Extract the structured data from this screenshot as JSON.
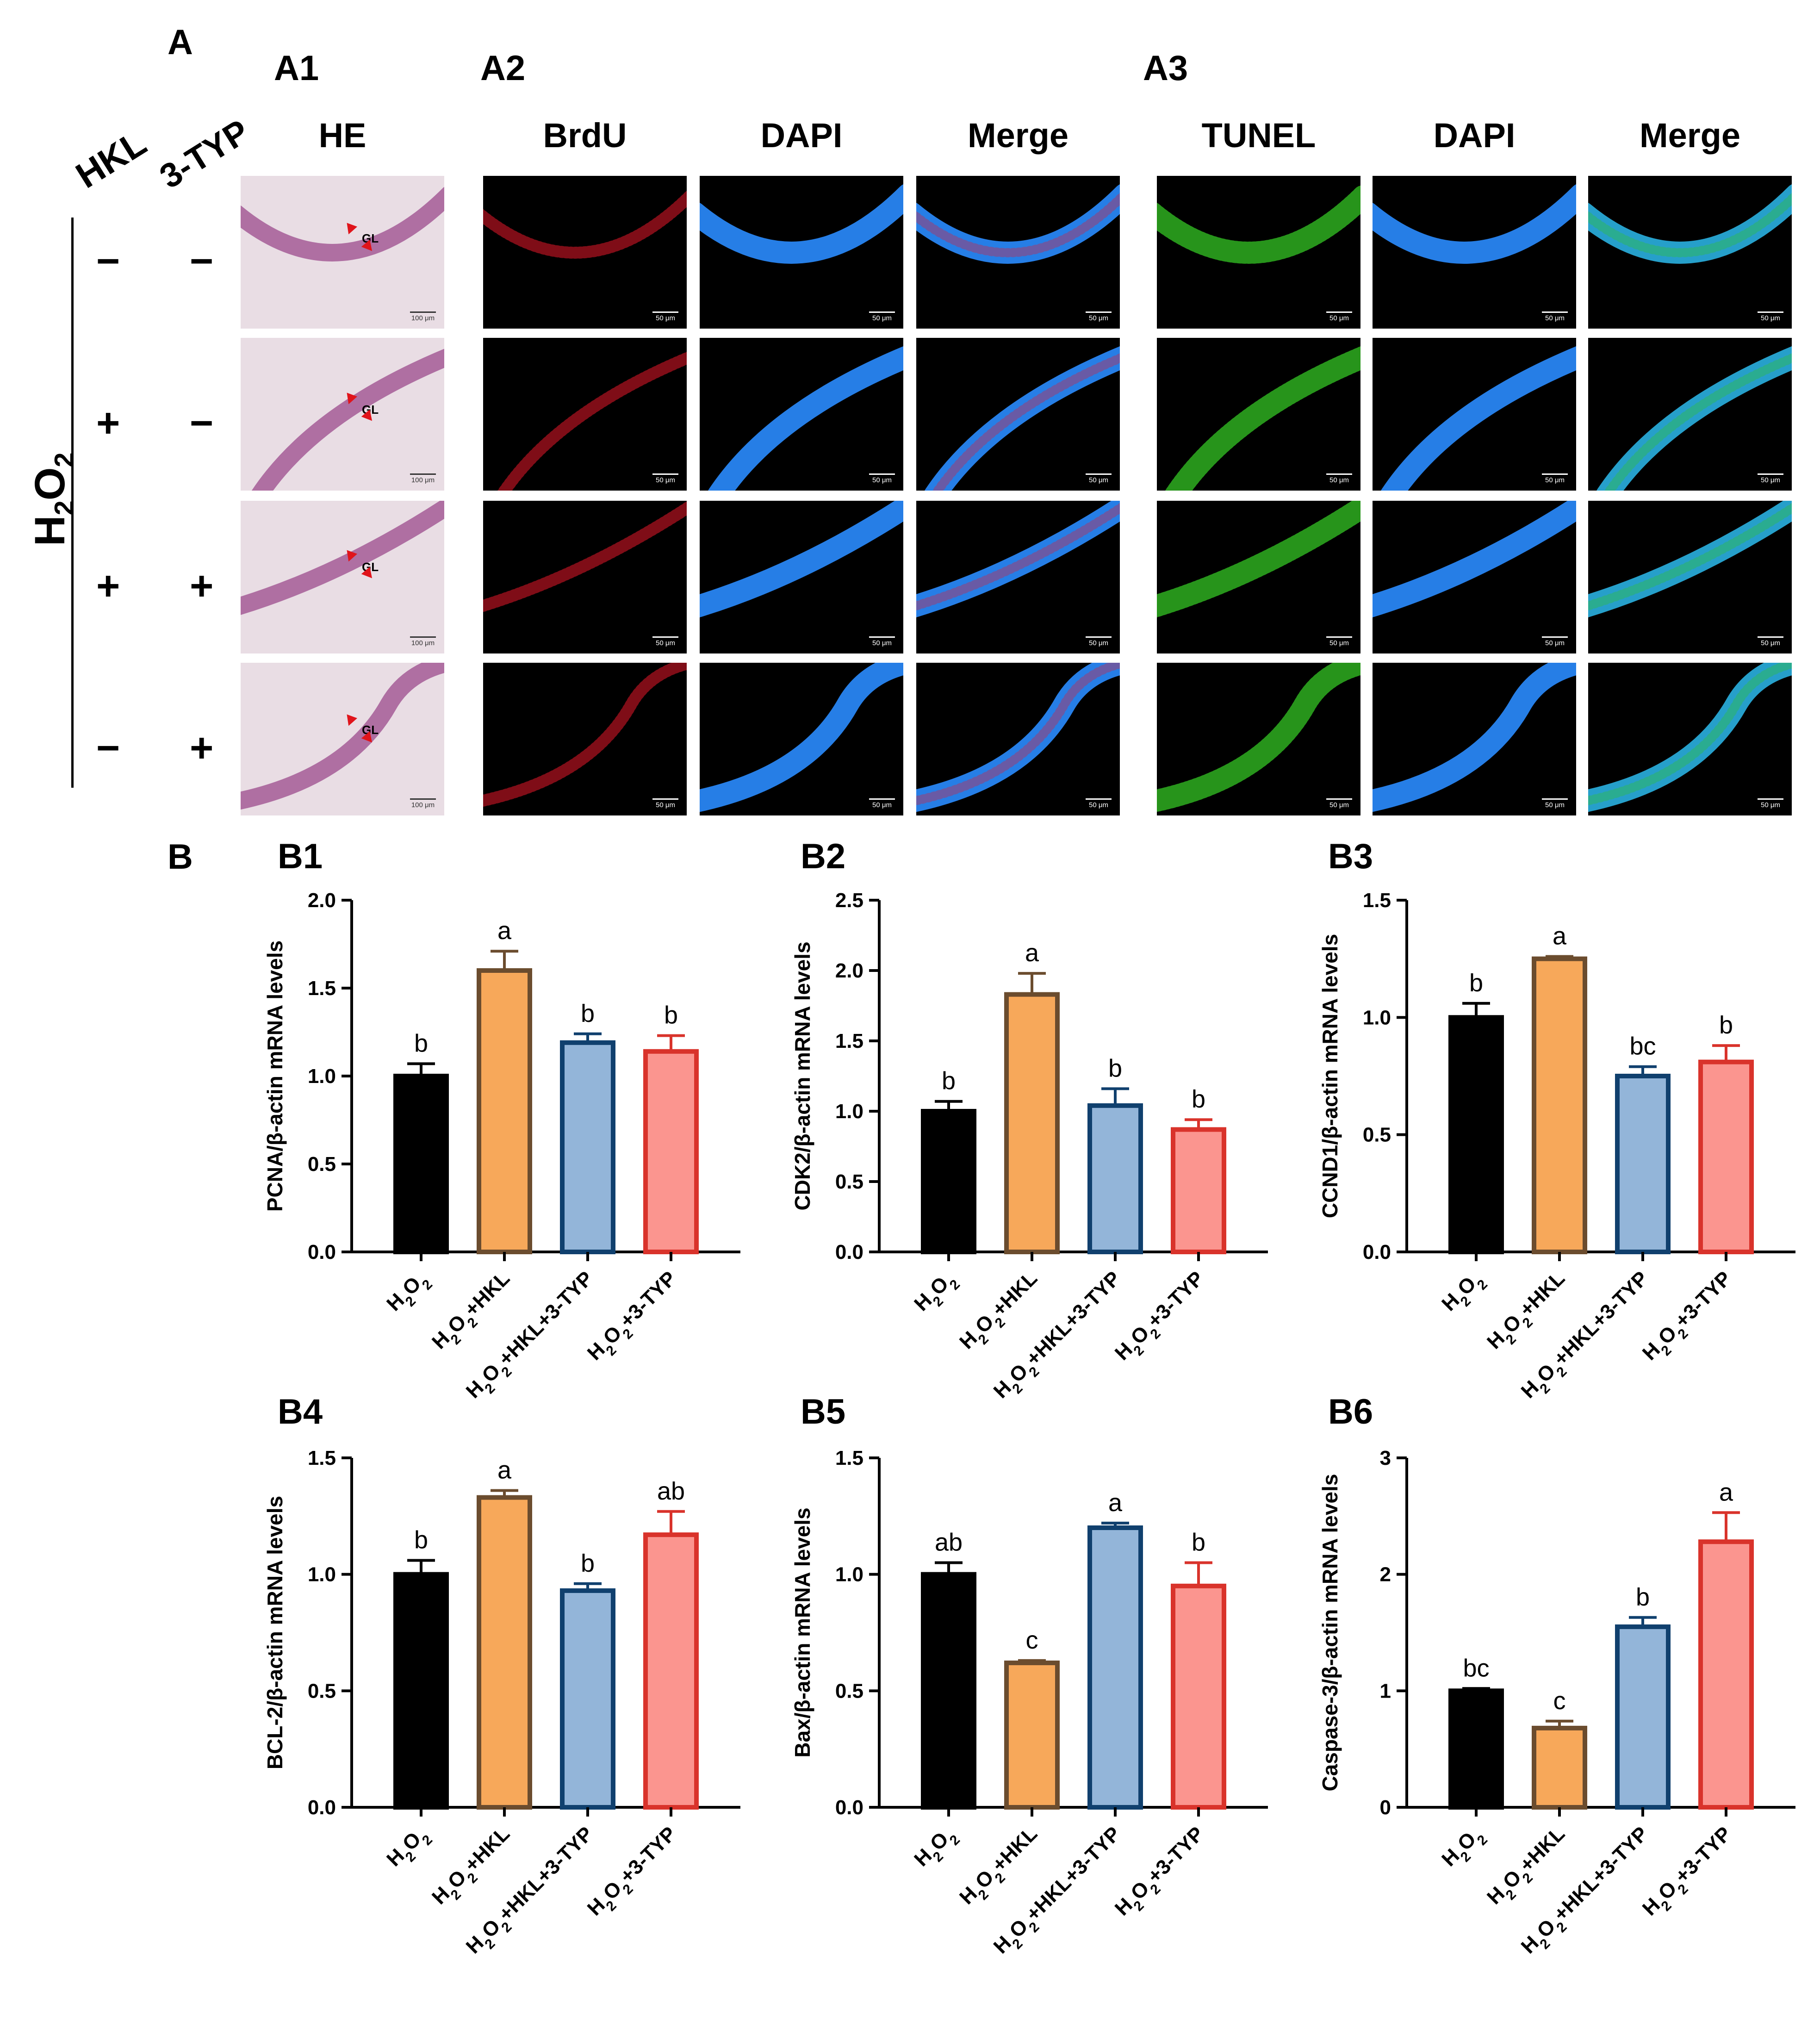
{
  "figure": {
    "panelA": {
      "letter": "A",
      "subpanels": [
        "A1",
        "A2",
        "A3"
      ],
      "row_factors": [
        "HKL",
        "3-TYP"
      ],
      "treatment": {
        "base": "H",
        "sub2": "2",
        "mid": "O",
        "sub2b": "2"
      },
      "columns": [
        "HE",
        "BrdU",
        "DAPI",
        "Merge",
        "TUNEL",
        "DAPI",
        "Merge"
      ],
      "rows": [
        {
          "hkl": "−",
          "typ": "−"
        },
        {
          "hkl": "+",
          "typ": "−"
        },
        {
          "hkl": "+",
          "typ": "+"
        },
        {
          "hkl": "−",
          "typ": "+"
        }
      ],
      "he_label": "GL",
      "he_scale": "100 μm",
      "fluor_scale": "50 μm",
      "stain_colors": {
        "BrdU": "#e8182a",
        "DAPI": "#2a8cff",
        "TUNEL": "#34c524",
        "MergeA3": "#2ab0e0"
      }
    },
    "panelB": {
      "letter": "B"
    }
  },
  "chart_data": [
    {
      "id": "B1",
      "type": "bar",
      "categories": [
        "H2O2",
        "H2O2+HKL",
        "H2O2+HKL+3-TYP",
        "H2O2+3-TYP"
      ],
      "values": [
        1.0,
        1.6,
        1.19,
        1.14
      ],
      "errors": [
        0.07,
        0.11,
        0.05,
        0.09
      ],
      "letters": [
        "b",
        "a",
        "b",
        "b"
      ],
      "ylabel": "PCNA/β-actin mRNA levels",
      "ylim": [
        0,
        2.0
      ],
      "yticks": [
        0.0,
        0.5,
        1.0,
        1.5,
        2.0
      ],
      "tick_decimals": 1
    },
    {
      "id": "B2",
      "type": "bar",
      "categories": [
        "H2O2",
        "H2O2+HKL",
        "H2O2+HKL+3-TYP",
        "H2O2+3-TYP"
      ],
      "values": [
        1.0,
        1.83,
        1.04,
        0.87
      ],
      "errors": [
        0.07,
        0.15,
        0.12,
        0.07
      ],
      "letters": [
        "b",
        "a",
        "b",
        "b"
      ],
      "ylabel": "CDK2/β-actin mRNA levels",
      "ylim": [
        0,
        2.5
      ],
      "yticks": [
        0.0,
        0.5,
        1.0,
        1.5,
        2.0,
        2.5
      ],
      "tick_decimals": 1
    },
    {
      "id": "B3",
      "type": "bar",
      "categories": [
        "H2O2",
        "H2O2+HKL",
        "H2O2+HKL+3-TYP",
        "H2O2+3-TYP"
      ],
      "values": [
        1.0,
        1.25,
        0.75,
        0.81
      ],
      "errors": [
        0.06,
        0.01,
        0.04,
        0.07
      ],
      "letters": [
        "b",
        "a",
        "bc",
        "b"
      ],
      "ylabel": "CCND1/β-actin mRNA levels",
      "ylim": [
        0,
        1.5
      ],
      "yticks": [
        0.0,
        0.5,
        1.0,
        1.5
      ],
      "tick_decimals": 1
    },
    {
      "id": "B4",
      "type": "bar",
      "categories": [
        "H2O2",
        "H2O2+HKL",
        "H2O2+HKL+3-TYP",
        "H2O2+3-TYP"
      ],
      "values": [
        1.0,
        1.33,
        0.93,
        1.17
      ],
      "errors": [
        0.06,
        0.03,
        0.03,
        0.1
      ],
      "letters": [
        "b",
        "a",
        "b",
        "ab"
      ],
      "ylabel": "BCL-2/β-actin mRNA levels",
      "ylim": [
        0,
        1.5
      ],
      "yticks": [
        0.0,
        0.5,
        1.0,
        1.5
      ],
      "tick_decimals": 1
    },
    {
      "id": "B5",
      "type": "bar",
      "categories": [
        "H2O2",
        "H2O2+HKL",
        "H2O2+HKL+3-TYP",
        "H2O2+3-TYP"
      ],
      "values": [
        1.0,
        0.62,
        1.2,
        0.95
      ],
      "errors": [
        0.05,
        0.01,
        0.02,
        0.1
      ],
      "letters": [
        "ab",
        "c",
        "a",
        "b"
      ],
      "ylabel": "Bax/β-actin mRNA levels",
      "ylim": [
        0,
        1.5
      ],
      "yticks": [
        0.0,
        0.5,
        1.0,
        1.5
      ],
      "tick_decimals": 1
    },
    {
      "id": "B6",
      "type": "bar",
      "categories": [
        "H2O2",
        "H2O2+HKL",
        "H2O2+HKL+3-TYP",
        "H2O2+3-TYP"
      ],
      "values": [
        1.0,
        0.68,
        1.55,
        2.28
      ],
      "errors": [
        0.02,
        0.06,
        0.08,
        0.25
      ],
      "letters": [
        "bc",
        "c",
        "b",
        "a"
      ],
      "ylabel": "Caspase-3/β-actin mRNA levels",
      "ylim": [
        0,
        3
      ],
      "yticks": [
        0,
        1,
        2,
        3
      ],
      "tick_decimals": 0
    }
  ],
  "bar_styles": [
    {
      "fill": "#000000",
      "stroke": "#000000"
    },
    {
      "fill": "#f7a85a",
      "stroke": "#6b4c2e"
    },
    {
      "fill": "#93b5d9",
      "stroke": "#10406e"
    },
    {
      "fill": "#fb958f",
      "stroke": "#d9332b"
    }
  ]
}
